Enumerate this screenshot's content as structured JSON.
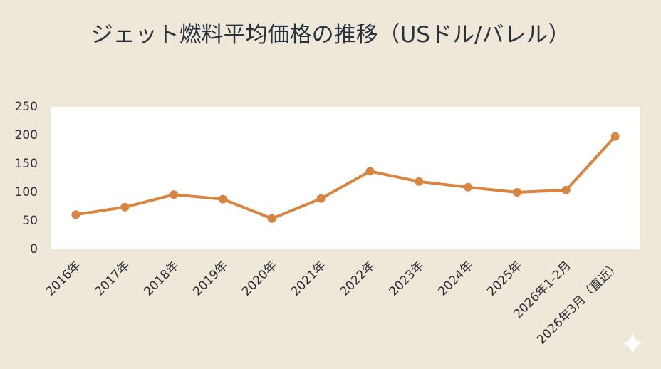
{
  "chart_data": {
    "type": "line",
    "title": "ジェット燃料平均価格の推移（USドル/バレル）",
    "categories": [
      "2016年",
      "2017年",
      "2018年",
      "2019年",
      "2020年",
      "2021年",
      "2022年",
      "2023年",
      "2024年",
      "2025年",
      "2026年1-2月",
      "2026年3月（直近）"
    ],
    "values": [
      61,
      74,
      96,
      88,
      54,
      89,
      137,
      119,
      109,
      100,
      104,
      198
    ],
    "color": "#d9843f",
    "ylim": [
      0,
      250
    ],
    "yticks": [
      0,
      50,
      100,
      150,
      200,
      250
    ]
  }
}
